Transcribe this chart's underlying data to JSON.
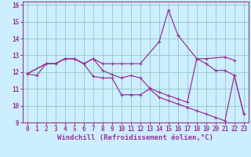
{
  "background_color": "#cceeff",
  "line_color": "#993399",
  "grid_color": "#99cccc",
  "xlabel": "Windchill (Refroidissement éolien,°C)",
  "xlabel_fontsize": 6.5,
  "tick_fontsize": 5.5,
  "xlim": [
    -0.5,
    23.5
  ],
  "ylim": [
    9,
    16.2
  ],
  "yticks": [
    9,
    10,
    11,
    12,
    13,
    14,
    15,
    16
  ],
  "xticks": [
    0,
    1,
    2,
    3,
    4,
    5,
    6,
    7,
    8,
    9,
    10,
    11,
    12,
    13,
    14,
    15,
    16,
    17,
    18,
    19,
    20,
    21,
    22,
    23
  ],
  "series": [
    {
      "x": [
        0,
        1,
        2,
        3,
        4,
        5,
        6,
        7,
        8,
        9,
        10,
        11,
        12,
        13,
        14,
        15,
        16,
        17,
        18,
        19,
        20,
        21,
        22,
        23
      ],
      "y": [
        11.9,
        11.8,
        12.5,
        12.5,
        12.8,
        12.8,
        12.5,
        11.75,
        11.65,
        11.65,
        10.65,
        10.65,
        10.65,
        11.0,
        10.5,
        10.3,
        10.1,
        9.9,
        9.7,
        9.5,
        9.3,
        9.1,
        11.8,
        9.5
      ]
    },
    {
      "x": [
        0,
        2,
        3,
        4,
        5,
        6,
        7,
        8,
        9,
        10,
        11,
        12,
        14,
        15,
        16,
        18,
        19,
        21,
        22
      ],
      "y": [
        11.9,
        12.5,
        12.5,
        12.8,
        12.8,
        12.5,
        12.8,
        12.5,
        12.5,
        12.5,
        12.5,
        12.5,
        13.8,
        15.7,
        14.2,
        12.8,
        12.8,
        12.9,
        12.7
      ]
    },
    {
      "x": [
        0,
        2,
        3,
        4,
        5,
        6,
        7,
        8,
        9,
        10,
        11,
        12,
        13,
        14,
        15,
        16,
        17,
        18,
        19,
        20,
        21,
        22,
        23
      ],
      "y": [
        11.9,
        12.5,
        12.5,
        12.8,
        12.8,
        12.5,
        12.8,
        12.1,
        11.85,
        11.65,
        11.8,
        11.65,
        11.05,
        10.8,
        10.6,
        10.4,
        10.2,
        12.8,
        12.5,
        12.1,
        12.1,
        11.8,
        9.5
      ]
    }
  ]
}
